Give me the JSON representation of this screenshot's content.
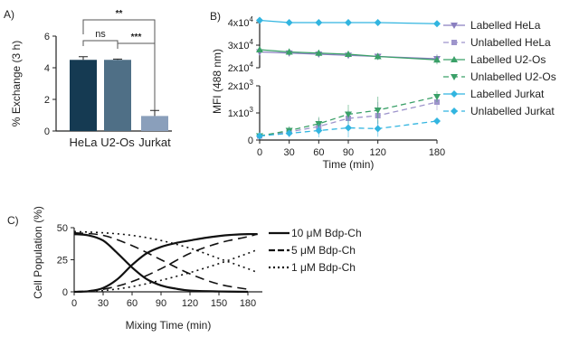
{
  "panels": {
    "a": "A)",
    "b": "B)",
    "c": "C)"
  },
  "chart_data": [
    {
      "type": "bar",
      "categories": [
        "HeLa",
        "U2-Os",
        "Jurkat"
      ],
      "values": [
        4.5,
        4.5,
        0.95
      ],
      "errors": [
        0.2,
        0.05,
        0.35
      ],
      "colors": [
        "#153a52",
        "#4f6f86",
        "#8a9fbb"
      ],
      "ylabel": "% Exchange (3 h)",
      "ylim": [
        0,
        6
      ],
      "yticks": [
        "0",
        "2",
        "4",
        "6"
      ],
      "significance": [
        {
          "pair": [
            0,
            1
          ],
          "label": "ns"
        },
        {
          "pair": [
            1,
            2
          ],
          "label": "***"
        },
        {
          "pair": [
            0,
            2
          ],
          "label": "**"
        }
      ]
    },
    {
      "type": "line",
      "xlabel": "Time (min)",
      "ylabel": "MFI (488 nm)",
      "x": [
        0,
        30,
        60,
        90,
        120,
        180
      ],
      "xticks": [
        "0",
        "30",
        "60",
        "90",
        "120",
        "180"
      ],
      "broken_axis": true,
      "upper_ylim": [
        20000,
        42000
      ],
      "upper_yticks": [
        {
          "v": 20000,
          "base": "2x10",
          "exp": "4"
        },
        {
          "v": 30000,
          "base": "3x10",
          "exp": "4"
        },
        {
          "v": 40000,
          "base": "4x10",
          "exp": "4"
        }
      ],
      "lower_ylim": [
        0,
        2000
      ],
      "lower_yticks": [
        {
          "v": 0,
          "base": "0",
          "exp": ""
        },
        {
          "v": 1000,
          "base": "1x10",
          "exp": "3"
        },
        {
          "v": 2000,
          "base": "2x10",
          "exp": "3"
        }
      ],
      "series": [
        {
          "name": "Labelled HeLa",
          "color": "#8a7fc0",
          "marker": "tri-down",
          "dash": "none",
          "values": [
            27000,
            26500,
            26000,
            25500,
            25000,
            24000
          ],
          "errors": [
            1500,
            1500,
            1200,
            1500,
            1500,
            2000
          ]
        },
        {
          "name": "Unlabelled HeLa",
          "color": "#9e95cc",
          "marker": "square",
          "dash": "6,4",
          "values": [
            150,
            300,
            500,
            800,
            900,
            1400
          ],
          "errors": [
            60,
            200,
            300,
            300,
            500,
            300
          ]
        },
        {
          "name": "Labelled U2-Os",
          "color": "#3aa068",
          "marker": "tri-up",
          "dash": "none",
          "values": [
            28000,
            27000,
            26500,
            26000,
            25000,
            23500
          ],
          "errors": [
            1200,
            1500,
            1500,
            1500,
            1500,
            2000
          ]
        },
        {
          "name": "Unlabelled U2-Os",
          "color": "#3aa068",
          "marker": "tri-down",
          "dash": "6,4",
          "values": [
            150,
            350,
            600,
            950,
            1100,
            1600
          ],
          "errors": [
            60,
            150,
            250,
            350,
            500,
            200
          ]
        },
        {
          "name": "Labelled Jurkat",
          "color": "#32b5e0",
          "marker": "diamond",
          "dash": "none",
          "values": [
            41000,
            40000,
            40000,
            40000,
            40000,
            39500
          ],
          "errors": [
            600,
            500,
            500,
            600,
            600,
            600
          ]
        },
        {
          "name": "Unlabelled Jurkat",
          "color": "#32b5e0",
          "marker": "diamond",
          "dash": "6,4",
          "values": [
            150,
            250,
            350,
            450,
            420,
            700
          ],
          "errors": [
            40,
            100,
            250,
            350,
            300,
            100
          ]
        }
      ]
    },
    {
      "type": "line",
      "xlabel": "Mixing Time (min)",
      "ylabel": "Cell Population (%)",
      "xlim": [
        0,
        195
      ],
      "ylim": [
        0,
        50
      ],
      "xticks": [
        "0",
        "30",
        "60",
        "90",
        "120",
        "150",
        "180"
      ],
      "yticks": [
        "0",
        "25",
        "50"
      ],
      "yticks_values": [
        0,
        25,
        50
      ],
      "series": [
        {
          "name": "10 μM Bdp-Ch",
          "dash": "none",
          "width": 2.2,
          "curves": [
            {
              "x": [
                0,
                15,
                30,
                45,
                60,
                75,
                90,
                105,
                120,
                150,
                180
              ],
              "y": [
                45,
                44,
                40,
                30,
                19,
                10,
                5,
                2.5,
                1,
                0.3,
                0
              ]
            },
            {
              "x": [
                0,
                15,
                30,
                45,
                60,
                75,
                90,
                105,
                120,
                135,
                150,
                165,
                180,
                190
              ],
              "y": [
                0,
                0.5,
                3,
                10,
                21,
                30,
                35,
                38,
                40,
                42,
                43.5,
                44.5,
                45,
                45
              ]
            }
          ]
        },
        {
          "name": "5 μM Bdp-Ch",
          "dash": "10,6",
          "width": 1.6,
          "curves": [
            {
              "x": [
                0,
                30,
                60,
                90,
                120,
                150,
                180
              ],
              "y": [
                46,
                44,
                36,
                25,
                14,
                6,
                2
              ]
            },
            {
              "x": [
                0,
                30,
                60,
                90,
                120,
                150,
                180,
                190
              ],
              "y": [
                0,
                2,
                8,
                18,
                30,
                38,
                43,
                45
              ]
            }
          ]
        },
        {
          "name": "1 μM Bdp-Ch",
          "dash": "2,4",
          "width": 1.6,
          "curves": [
            {
              "x": [
                0,
                30,
                60,
                90,
                120,
                150,
                180,
                190
              ],
              "y": [
                47,
                46,
                44,
                40,
                34,
                26,
                18,
                15
              ]
            },
            {
              "x": [
                0,
                30,
                60,
                90,
                120,
                150,
                180,
                190
              ],
              "y": [
                0,
                1,
                4,
                9,
                15,
                22,
                30,
                33
              ]
            }
          ]
        }
      ]
    }
  ]
}
